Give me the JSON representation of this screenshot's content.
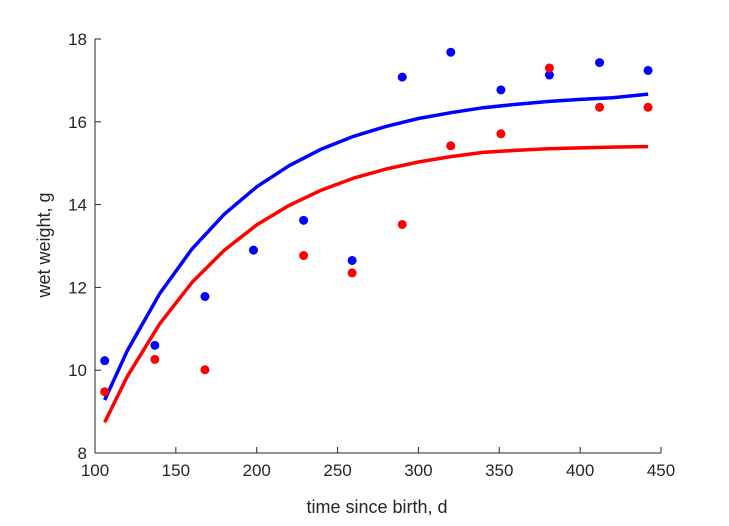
{
  "chart_data": {
    "type": "scatter",
    "xlabel": "time since birth, d",
    "ylabel": "wet weight, g",
    "xlim": [
      100,
      450
    ],
    "ylim": [
      8,
      18
    ],
    "xticks": [
      100,
      150,
      200,
      250,
      300,
      350,
      400,
      450
    ],
    "yticks": [
      8,
      10,
      12,
      14,
      16,
      18
    ],
    "grid": false,
    "colors": {
      "blue": "#0000ff",
      "red": "#ff0000",
      "axis": "#262626"
    },
    "series": [
      {
        "color": "blue",
        "points": [
          [
            106,
            10.23
          ],
          [
            137,
            10.6
          ],
          [
            168,
            11.78
          ],
          [
            198,
            12.9
          ],
          [
            229,
            13.62
          ],
          [
            259,
            12.65
          ],
          [
            290,
            17.08
          ],
          [
            320,
            17.68
          ],
          [
            351,
            16.77
          ],
          [
            381,
            17.13
          ],
          [
            412,
            17.43
          ],
          [
            442,
            17.24
          ]
        ],
        "fit": [
          [
            106,
            9.28
          ],
          [
            120,
            10.47
          ],
          [
            140,
            11.85
          ],
          [
            160,
            12.93
          ],
          [
            180,
            13.77
          ],
          [
            200,
            14.43
          ],
          [
            220,
            14.94
          ],
          [
            240,
            15.34
          ],
          [
            260,
            15.65
          ],
          [
            280,
            15.89
          ],
          [
            300,
            16.08
          ],
          [
            320,
            16.22
          ],
          [
            340,
            16.34
          ],
          [
            360,
            16.42
          ],
          [
            380,
            16.49
          ],
          [
            400,
            16.54
          ],
          [
            420,
            16.58
          ],
          [
            442,
            16.67
          ]
        ]
      },
      {
        "color": "red",
        "points": [
          [
            106,
            9.48
          ],
          [
            137,
            10.26
          ],
          [
            168,
            10.01
          ],
          [
            229,
            12.77
          ],
          [
            259,
            12.35
          ],
          [
            290,
            13.52
          ],
          [
            320,
            15.42
          ],
          [
            351,
            15.71
          ],
          [
            381,
            17.3
          ],
          [
            412,
            16.35
          ],
          [
            442,
            16.35
          ]
        ],
        "fit": [
          [
            106,
            8.74
          ],
          [
            120,
            9.85
          ],
          [
            140,
            11.12
          ],
          [
            160,
            12.12
          ],
          [
            180,
            12.9
          ],
          [
            200,
            13.51
          ],
          [
            220,
            13.98
          ],
          [
            240,
            14.35
          ],
          [
            260,
            14.64
          ],
          [
            280,
            14.86
          ],
          [
            300,
            15.03
          ],
          [
            320,
            15.16
          ],
          [
            340,
            15.26
          ],
          [
            360,
            15.31
          ],
          [
            380,
            15.35
          ],
          [
            400,
            15.37
          ],
          [
            420,
            15.39
          ],
          [
            442,
            15.4
          ]
        ]
      }
    ]
  }
}
